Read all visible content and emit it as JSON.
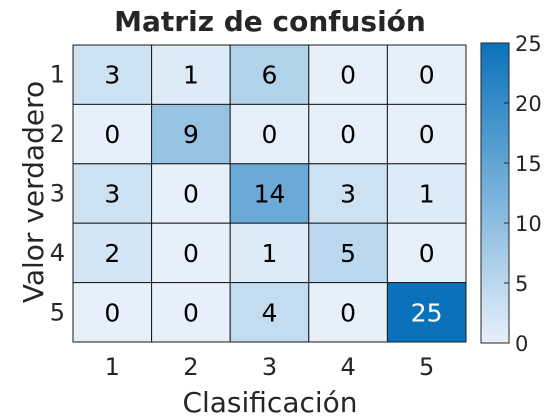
{
  "chart_data": {
    "type": "heatmap",
    "title": "Matriz de confusión",
    "xlabel": "Clasificación",
    "ylabel": "Valor verdadero",
    "x_categories": [
      "1",
      "2",
      "3",
      "4",
      "5"
    ],
    "y_categories": [
      "1",
      "2",
      "3",
      "4",
      "5"
    ],
    "values": [
      [
        3,
        1,
        6,
        0,
        0
      ],
      [
        0,
        9,
        0,
        0,
        0
      ],
      [
        3,
        0,
        14,
        3,
        1
      ],
      [
        2,
        0,
        1,
        5,
        0
      ],
      [
        0,
        0,
        4,
        0,
        25
      ]
    ],
    "colorbar": {
      "range": [
        0,
        25
      ],
      "ticks": [
        0,
        5,
        10,
        15,
        20,
        25
      ],
      "color_low": "#e6f0fa",
      "color_high": "#0a72ba"
    },
    "text_color_dark": "#000000",
    "text_color_light": "#ffffff"
  }
}
